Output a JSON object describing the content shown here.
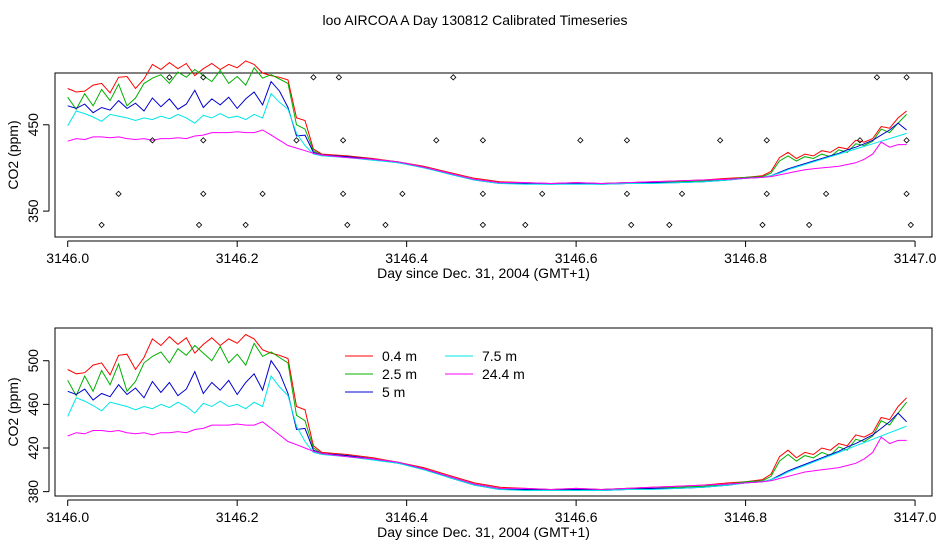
{
  "title": "loo AIRCOA A  Day 130812  Calibrated Timeseries",
  "colors": {
    "0.4 m": "#ff0000",
    "2.5 m": "#00b000",
    "5 m": "#0000d0",
    "7.5 m": "#00e6e6",
    "24.4 m": "#ff00ff"
  },
  "chart_data": [
    {
      "type": "line",
      "xlabel": "Day since Dec. 31, 2004 (GMT+1)",
      "ylabel": "CO2 (ppm)",
      "xlim": [
        3145.985,
        3147.02
      ],
      "ylim": [
        320,
        510
      ],
      "x_ticks": [
        "3146.0",
        "3146.2",
        "3146.4",
        "3146.6",
        "3146.8",
        "3147.0"
      ],
      "x_tick_values": [
        3146.0,
        3146.2,
        3146.4,
        3146.6,
        3146.8,
        3147.0
      ],
      "y_ticks": [
        "350",
        "450"
      ],
      "y_tick_values": [
        350,
        450
      ],
      "legend": false,
      "diamond_points": [
        [
          3146.12,
          505
        ],
        [
          3146.16,
          505
        ],
        [
          3146.29,
          505
        ],
        [
          3146.32,
          505
        ],
        [
          3146.455,
          505
        ],
        [
          3146.955,
          505
        ],
        [
          3146.99,
          505
        ],
        [
          3146.1,
          432
        ],
        [
          3146.16,
          432
        ],
        [
          3146.27,
          432
        ],
        [
          3146.325,
          432
        ],
        [
          3146.435,
          432
        ],
        [
          3146.49,
          432
        ],
        [
          3146.605,
          432
        ],
        [
          3146.66,
          432
        ],
        [
          3146.77,
          432
        ],
        [
          3146.825,
          432
        ],
        [
          3146.935,
          432
        ],
        [
          3146.99,
          432
        ],
        [
          3146.06,
          370
        ],
        [
          3146.16,
          370
        ],
        [
          3146.23,
          370
        ],
        [
          3146.325,
          370
        ],
        [
          3146.395,
          370
        ],
        [
          3146.49,
          370
        ],
        [
          3146.56,
          370
        ],
        [
          3146.66,
          370
        ],
        [
          3146.725,
          370
        ],
        [
          3146.825,
          370
        ],
        [
          3146.895,
          370
        ],
        [
          3146.99,
          370
        ],
        [
          3146.04,
          334
        ],
        [
          3146.155,
          334
        ],
        [
          3146.21,
          334
        ],
        [
          3146.33,
          334
        ],
        [
          3146.375,
          334
        ],
        [
          3146.49,
          334
        ],
        [
          3146.54,
          334
        ],
        [
          3146.665,
          334
        ],
        [
          3146.71,
          334
        ],
        [
          3146.82,
          334
        ],
        [
          3146.875,
          334
        ],
        [
          3146.995,
          334
        ]
      ]
    },
    {
      "type": "line",
      "xlabel": "Day since Dec. 31, 2004 (GMT+1)",
      "ylabel": "CO2 (ppm)",
      "xlim": [
        3145.985,
        3147.02
      ],
      "ylim": [
        376,
        530
      ],
      "x_ticks": [
        "3146.0",
        "3146.2",
        "3146.4",
        "3146.6",
        "3146.8",
        "3147.0"
      ],
      "x_tick_values": [
        3146.0,
        3146.2,
        3146.4,
        3146.6,
        3146.8,
        3147.0
      ],
      "y_ticks": [
        "380",
        "420",
        "460",
        "500"
      ],
      "y_tick_values": [
        380,
        420,
        460,
        500
      ],
      "legend": true,
      "legend_position": "top-center"
    }
  ],
  "series": [
    {
      "name": "0.4 m",
      "x": [
        3146.0,
        3146.01,
        3146.02,
        3146.03,
        3146.04,
        3146.05,
        3146.06,
        3146.07,
        3146.08,
        3146.09,
        3146.1,
        3146.11,
        3146.12,
        3146.13,
        3146.14,
        3146.15,
        3146.16,
        3146.17,
        3146.18,
        3146.19,
        3146.2,
        3146.21,
        3146.22,
        3146.23,
        3146.24,
        3146.25,
        3146.26,
        3146.27,
        3146.28,
        3146.29,
        3146.3,
        3146.33,
        3146.36,
        3146.39,
        3146.42,
        3146.45,
        3146.48,
        3146.51,
        3146.54,
        3146.57,
        3146.6,
        3146.63,
        3146.66,
        3146.69,
        3146.72,
        3146.75,
        3146.78,
        3146.8,
        3146.82,
        3146.83,
        3146.84,
        3146.85,
        3146.86,
        3146.87,
        3146.88,
        3146.89,
        3146.9,
        3146.91,
        3146.92,
        3146.93,
        3146.94,
        3146.95,
        3146.96,
        3146.97,
        3146.98,
        3146.99
      ],
      "y": [
        492,
        488,
        489,
        496,
        498,
        487,
        505,
        506,
        492,
        503,
        520,
        514,
        522,
        515,
        521,
        507,
        515,
        521,
        514,
        520,
        516,
        524,
        520,
        510,
        507,
        505,
        502,
        458,
        455,
        422,
        416,
        414,
        411,
        407,
        402,
        395,
        388,
        384,
        383,
        382,
        383,
        382,
        383,
        384,
        385,
        386,
        388,
        389,
        391,
        396,
        412,
        418,
        411,
        416,
        414,
        420,
        418,
        424,
        422,
        432,
        430,
        434,
        448,
        446,
        458,
        466
      ]
    },
    {
      "name": "2.5 m",
      "x": [
        3146.0,
        3146.01,
        3146.02,
        3146.03,
        3146.04,
        3146.05,
        3146.06,
        3146.07,
        3146.08,
        3146.09,
        3146.1,
        3146.11,
        3146.12,
        3146.13,
        3146.14,
        3146.15,
        3146.16,
        3146.17,
        3146.18,
        3146.19,
        3146.2,
        3146.21,
        3146.22,
        3146.23,
        3146.24,
        3146.25,
        3146.26,
        3146.27,
        3146.28,
        3146.29,
        3146.3,
        3146.33,
        3146.36,
        3146.39,
        3146.42,
        3146.45,
        3146.48,
        3146.51,
        3146.54,
        3146.57,
        3146.6,
        3146.63,
        3146.66,
        3146.69,
        3146.72,
        3146.75,
        3146.78,
        3146.8,
        3146.82,
        3146.83,
        3146.84,
        3146.85,
        3146.86,
        3146.87,
        3146.88,
        3146.89,
        3146.9,
        3146.91,
        3146.92,
        3146.93,
        3146.94,
        3146.95,
        3146.96,
        3146.97,
        3146.98,
        3146.99
      ],
      "y": [
        482,
        468,
        486,
        472,
        491,
        478,
        497,
        472,
        481,
        498,
        504,
        508,
        498,
        511,
        505,
        514,
        507,
        500,
        513,
        498,
        506,
        496,
        516,
        504,
        508,
        503,
        498,
        450,
        445,
        420,
        415,
        413,
        410,
        407,
        401,
        394,
        387,
        383,
        382,
        382,
        382,
        382,
        383,
        383,
        384,
        385,
        387,
        389,
        390,
        394,
        408,
        414,
        408,
        413,
        411,
        416,
        413,
        421,
        418,
        428,
        426,
        431,
        445,
        441,
        452,
        462
      ]
    },
    {
      "name": "5 m",
      "x": [
        3146.0,
        3146.01,
        3146.02,
        3146.03,
        3146.04,
        3146.05,
        3146.06,
        3146.07,
        3146.08,
        3146.09,
        3146.1,
        3146.11,
        3146.12,
        3146.13,
        3146.14,
        3146.15,
        3146.16,
        3146.17,
        3146.18,
        3146.19,
        3146.2,
        3146.21,
        3146.22,
        3146.23,
        3146.24,
        3146.25,
        3146.26,
        3146.27,
        3146.28,
        3146.29,
        3146.3,
        3146.33,
        3146.36,
        3146.39,
        3146.42,
        3146.45,
        3146.48,
        3146.51,
        3146.54,
        3146.57,
        3146.6,
        3146.63,
        3146.66,
        3146.69,
        3146.72,
        3146.75,
        3146.78,
        3146.8,
        3146.82,
        3146.83,
        3146.84,
        3146.85,
        3146.86,
        3146.87,
        3146.88,
        3146.89,
        3146.9,
        3146.91,
        3146.92,
        3146.93,
        3146.94,
        3146.95,
        3146.96,
        3146.97,
        3146.98,
        3146.99
      ],
      "y": [
        472,
        469,
        474,
        464,
        470,
        467,
        478,
        469,
        475,
        466,
        481,
        471,
        480,
        468,
        474,
        490,
        470,
        480,
        473,
        482,
        469,
        480,
        488,
        473,
        500,
        489,
        470,
        437,
        438,
        418,
        415,
        413,
        410,
        406,
        401,
        393,
        386,
        382,
        382,
        381,
        382,
        381,
        382,
        383,
        383,
        384,
        386,
        388,
        389,
        391,
        395,
        399,
        402,
        405,
        408,
        411,
        414,
        417,
        421,
        424,
        428,
        432,
        438,
        444,
        452,
        444
      ]
    },
    {
      "name": "7.5 m",
      "x": [
        3146.0,
        3146.01,
        3146.02,
        3146.03,
        3146.04,
        3146.05,
        3146.06,
        3146.07,
        3146.08,
        3146.09,
        3146.1,
        3146.11,
        3146.12,
        3146.13,
        3146.14,
        3146.15,
        3146.16,
        3146.17,
        3146.18,
        3146.19,
        3146.2,
        3146.21,
        3146.22,
        3146.23,
        3146.24,
        3146.25,
        3146.26,
        3146.27,
        3146.28,
        3146.29,
        3146.3,
        3146.33,
        3146.36,
        3146.39,
        3146.42,
        3146.45,
        3146.48,
        3146.51,
        3146.54,
        3146.57,
        3146.6,
        3146.63,
        3146.66,
        3146.69,
        3146.72,
        3146.75,
        3146.78,
        3146.8,
        3146.82,
        3146.83,
        3146.84,
        3146.85,
        3146.86,
        3146.87,
        3146.88,
        3146.89,
        3146.9,
        3146.91,
        3146.92,
        3146.93,
        3146.94,
        3146.95,
        3146.96,
        3146.97,
        3146.98,
        3146.99
      ],
      "y": [
        449,
        466,
        463,
        459,
        454,
        462,
        460,
        458,
        455,
        458,
        456,
        460,
        457,
        462,
        458,
        452,
        461,
        458,
        463,
        458,
        460,
        456,
        462,
        458,
        486,
        476,
        468,
        440,
        426,
        416,
        414,
        412,
        409,
        406,
        400,
        393,
        386,
        382,
        381,
        381,
        381,
        381,
        382,
        382,
        383,
        384,
        386,
        388,
        389,
        391,
        394,
        398,
        401,
        404,
        407,
        410,
        413,
        416,
        419,
        422,
        425,
        428,
        431,
        434,
        437,
        440
      ]
    },
    {
      "name": "24.4 m",
      "x": [
        3146.0,
        3146.01,
        3146.02,
        3146.03,
        3146.04,
        3146.05,
        3146.06,
        3146.07,
        3146.08,
        3146.09,
        3146.1,
        3146.11,
        3146.12,
        3146.13,
        3146.14,
        3146.15,
        3146.16,
        3146.17,
        3146.18,
        3146.19,
        3146.2,
        3146.21,
        3146.22,
        3146.23,
        3146.24,
        3146.25,
        3146.26,
        3146.27,
        3146.28,
        3146.29,
        3146.3,
        3146.33,
        3146.36,
        3146.39,
        3146.42,
        3146.45,
        3146.48,
        3146.51,
        3146.54,
        3146.57,
        3146.6,
        3146.63,
        3146.66,
        3146.69,
        3146.72,
        3146.75,
        3146.78,
        3146.8,
        3146.82,
        3146.83,
        3146.84,
        3146.85,
        3146.86,
        3146.87,
        3146.88,
        3146.89,
        3146.9,
        3146.91,
        3146.92,
        3146.93,
        3146.94,
        3146.95,
        3146.96,
        3146.97,
        3146.98,
        3146.99
      ],
      "y": [
        431,
        434,
        433,
        436,
        436,
        435,
        436,
        434,
        433,
        434,
        432,
        434,
        434,
        435,
        434,
        437,
        438,
        441,
        441,
        441,
        442,
        441,
        441,
        444,
        438,
        432,
        426,
        423,
        420,
        417,
        415,
        412,
        410,
        407,
        401,
        394,
        387,
        383,
        383,
        382,
        383,
        382,
        383,
        384,
        385,
        386,
        387,
        388,
        389,
        390,
        392,
        394,
        396,
        398,
        399,
        400,
        401,
        402,
        404,
        406,
        410,
        416,
        430,
        424,
        427,
        427
      ]
    }
  ]
}
